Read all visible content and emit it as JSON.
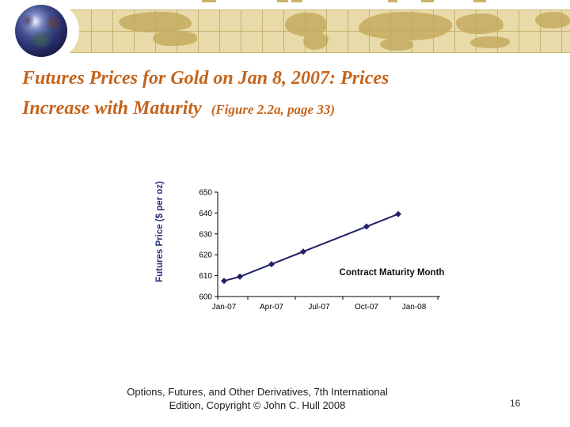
{
  "slide": {
    "title_line1": "Futures Prices for Gold on Jan 8, 2007: Prices",
    "title_line2": "Increase with Maturity",
    "title_note": "(Figure 2.2a, page 33)",
    "footer_line1": "Options, Futures, and Other Derivatives, 7th International",
    "footer_line2": "Edition, Copyright © John C. Hull 2008",
    "page_number": "16"
  },
  "banner": {
    "band_color": "#e8dba9",
    "continent_color": "#cbb26a",
    "grid_color": "#beaa64"
  },
  "chart_data": {
    "type": "line",
    "title": "",
    "x": [
      "Jan-07",
      "Feb-07",
      "Apr-07",
      "Jun-07",
      "Oct-07",
      "Dec-07"
    ],
    "month_index": [
      0,
      1,
      3,
      5,
      9,
      11
    ],
    "values": [
      607.5,
      609.5,
      615.5,
      621.5,
      633.5,
      639.5
    ],
    "xlabel": "Contract Maturity Month",
    "ylabel": "Futures Price ($ per oz)",
    "x_tick_labels": [
      "Jan-07",
      "Apr-07",
      "Jul-07",
      "Oct-07",
      "Jan-08"
    ],
    "x_tick_month_index": [
      0,
      3,
      6,
      9,
      12
    ],
    "y_ticks": [
      600,
      610,
      620,
      630,
      640,
      650
    ],
    "ylim": [
      600,
      650
    ],
    "grid": false,
    "legend": "none",
    "line_color": "#212168",
    "marker": "diamond",
    "axis_color": "#000000",
    "ylabel_color": "#26337b",
    "xlabel_color": "#111111"
  }
}
